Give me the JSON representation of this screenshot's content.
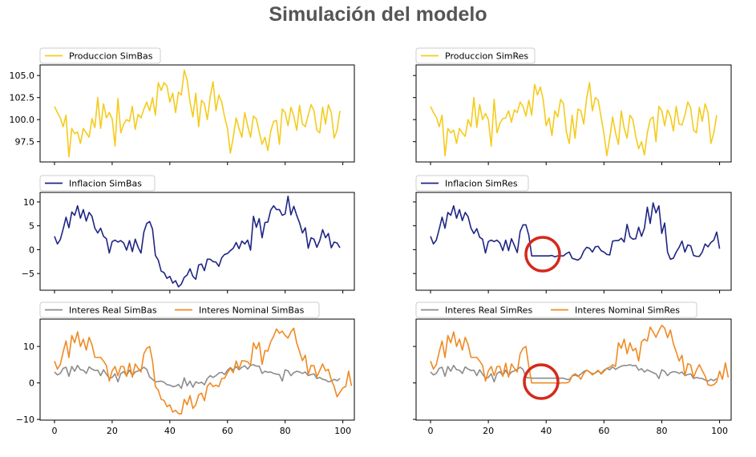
{
  "page_title": "Simulación del modelo",
  "colors": {
    "produccion": "#f5cb1d",
    "inflacion": "#1f2583",
    "interes_real": "#8c8c8c",
    "interes_nominal": "#ef8a22",
    "highlight": "#d42a1c"
  },
  "chart_data": [
    {
      "type": "line",
      "id": "prod-simbas",
      "xlim": [
        -5,
        104
      ],
      "ylim": [
        95.2,
        106.2
      ],
      "xticks": [
        0,
        20,
        40,
        60,
        80,
        100
      ],
      "show_xtick_labels": false,
      "yticks": [
        97.5,
        100.0,
        102.5,
        105.0
      ],
      "ytick_labels": [
        "97.5",
        "100.0",
        "102.5",
        "105.0"
      ],
      "legend_position": "top-left",
      "grid": false,
      "series": [
        {
          "name": "Produccion SimBas",
          "color_key": "produccion",
          "values": [
            101.5,
            100.8,
            100.2,
            99.2,
            100.5,
            95.8,
            99.0,
            98.4,
            98.6,
            97.3,
            99.0,
            98.5,
            98.0,
            100.1,
            99.1,
            102.5,
            99.0,
            101.8,
            100.2,
            100.8,
            100.1,
            97.0,
            102.4,
            98.5,
            99.5,
            100.0,
            99.8,
            101.5,
            98.9,
            100.6,
            100.2,
            101.2,
            102.0,
            101.0,
            102.5,
            100.5,
            104.2,
            103.3,
            104.2,
            103.8,
            102.0,
            103.0,
            100.8,
            103.1,
            102.8,
            105.6,
            104.5,
            102.0,
            100.3,
            103.0,
            99.2,
            102.2,
            101.8,
            100.0,
            102.6,
            104.3,
            101.0,
            102.8,
            102.0,
            100.3,
            99.0,
            96.2,
            98.0,
            100.2,
            99.0,
            98.0,
            100.8,
            99.3,
            98.0,
            100.4,
            100.1,
            98.6,
            97.2,
            98.0,
            96.5,
            98.7,
            99.8,
            99.9,
            97.2,
            101.2,
            100.8,
            99.3,
            101.4,
            100.4,
            98.8,
            101.6,
            99.5,
            99.2,
            100.5,
            101.7,
            101.0,
            98.8,
            98.5,
            101.4,
            99.5,
            101.7,
            100.8,
            97.9,
            98.8,
            101.0
          ]
        }
      ]
    },
    {
      "type": "line",
      "id": "prod-simres",
      "xlim": [
        -5,
        104
      ],
      "ylim": [
        95.2,
        106.2
      ],
      "xticks": [
        0,
        20,
        40,
        60,
        80,
        100
      ],
      "show_xtick_labels": false,
      "yticks": [
        97.5,
        100.0,
        102.5,
        105.0
      ],
      "ytick_labels": [
        "",
        "",
        "",
        ""
      ],
      "legend_position": "top-left",
      "grid": false,
      "series": [
        {
          "name": "Produccion SimRes",
          "color_key": "produccion",
          "values": [
            101.5,
            100.8,
            100.3,
            99.2,
            100.5,
            95.9,
            99.0,
            98.5,
            98.8,
            97.3,
            99.0,
            98.5,
            98.1,
            100.0,
            99.2,
            102.5,
            99.1,
            101.7,
            100.0,
            100.7,
            100.0,
            97.0,
            102.3,
            98.5,
            99.6,
            100.1,
            100.2,
            101.0,
            99.7,
            101.1,
            100.8,
            102.0,
            101.5,
            100.4,
            102.2,
            100.5,
            104.0,
            102.8,
            103.7,
            102.2,
            99.3,
            100.2,
            98.2,
            101.0,
            100.3,
            102.3,
            101.8,
            98.6,
            97.3,
            100.5,
            97.9,
            101.2,
            101.0,
            99.5,
            102.4,
            104.2,
            101.0,
            102.5,
            102.2,
            100.3,
            98.4,
            95.9,
            97.9,
            100.3,
            98.5,
            97.2,
            101.0,
            99.0,
            97.9,
            100.5,
            100.0,
            98.1,
            96.7,
            97.5,
            96.0,
            98.5,
            100.0,
            100.3,
            97.5,
            101.5,
            101.0,
            99.3,
            101.1,
            100.4,
            98.7,
            101.5,
            99.5,
            99.4,
            100.5,
            102.0,
            101.3,
            98.8,
            98.5,
            101.4,
            99.8,
            101.8,
            100.8,
            97.3,
            98.5,
            100.5
          ]
        }
      ]
    },
    {
      "type": "line",
      "id": "infl-simbas",
      "xlim": [
        -5,
        104
      ],
      "ylim": [
        -8.5,
        12.0
      ],
      "xticks": [
        0,
        20,
        40,
        60,
        80,
        100
      ],
      "show_xtick_labels": false,
      "yticks": [
        -5,
        0,
        5,
        10
      ],
      "ytick_labels": [
        "−5",
        "0",
        "5",
        "10"
      ],
      "legend_position": "top-left",
      "grid": false,
      "series": [
        {
          "name": "Inflacion SimBas",
          "color_key": "inflacion",
          "values": [
            2.8,
            1.2,
            2.1,
            4.3,
            6.8,
            4.6,
            7.9,
            7.2,
            9.2,
            6.6,
            8.4,
            6.0,
            7.8,
            7.0,
            4.5,
            3.5,
            4.5,
            2.8,
            2.3,
            -0.7,
            1.7,
            2.0,
            1.6,
            1.9,
            1.4,
            -0.1,
            1.9,
            -0.4,
            2.2,
            0.5,
            -0.7,
            3.7,
            5.5,
            5.9,
            4.3,
            -1.2,
            -2.2,
            -4.5,
            -4.8,
            -6.0,
            -5.6,
            -7.0,
            -6.5,
            -7.8,
            -7.2,
            -5.8,
            -5.3,
            -4.0,
            -5.6,
            -6.2,
            -3.2,
            -3.0,
            -4.4,
            -2.0,
            -2.0,
            -2.5,
            -2.6,
            -3.5,
            -1.7,
            -1.0,
            -0.8,
            -0.2,
            0.3,
            1.5,
            0.2,
            1.8,
            1.2,
            2.0,
            -0.1,
            7.0,
            4.7,
            6.5,
            2.5,
            5.7,
            5.8,
            8.3,
            9.2,
            8.4,
            8.4,
            7.2,
            7.5,
            11.2,
            7.3,
            9.1,
            7.2,
            5.6,
            3.5,
            4.6,
            0.3,
            2.5,
            2.2,
            0.5,
            1.9,
            4.2,
            2.5,
            3.4,
            0.4,
            1.6,
            1.4,
            0.4
          ]
        }
      ]
    },
    {
      "type": "line",
      "id": "infl-simres",
      "xlim": [
        -5,
        104
      ],
      "ylim": [
        -8.5,
        12.0
      ],
      "xticks": [
        0,
        20,
        40,
        60,
        80,
        100
      ],
      "show_xtick_labels": false,
      "yticks": [
        -5,
        0,
        5,
        10
      ],
      "ytick_labels": [
        "",
        "",
        "",
        ""
      ],
      "legend_position": "top-left",
      "grid": false,
      "series": [
        {
          "name": "Inflacion SimRes",
          "color_key": "inflacion",
          "values": [
            2.8,
            1.2,
            2.0,
            4.3,
            6.8,
            4.5,
            7.8,
            7.2,
            9.2,
            6.6,
            8.4,
            6.1,
            7.8,
            6.9,
            4.5,
            3.4,
            4.4,
            2.6,
            2.2,
            -0.7,
            1.7,
            2.0,
            1.7,
            2.0,
            1.4,
            -0.2,
            2.0,
            -0.2,
            2.3,
            0.9,
            -0.6,
            3.8,
            5.2,
            5.2,
            3.0,
            -1.3,
            -1.3,
            -1.3,
            -1.3,
            -1.3,
            -1.3,
            -1.3,
            -1.2,
            -1.5,
            -1.3,
            -1.3,
            -1.3,
            -0.8,
            -0.5,
            -1.8,
            -2.0,
            -2.2,
            -1.7,
            -0.3,
            0.5,
            0.3,
            -0.5,
            0.6,
            0.7,
            -0.2,
            -0.5,
            -1.0,
            -1.1,
            1.8,
            1.9,
            1.9,
            2.4,
            1.6,
            5.3,
            2.7,
            2.2,
            2.3,
            4.7,
            2.8,
            4.5,
            8.9,
            5.5,
            9.8,
            7.7,
            9.2,
            3.4,
            5.6,
            -0.5,
            -2.0,
            -1.8,
            -0.5,
            0.5,
            1.8,
            -0.5,
            1.0,
            0.8,
            -1.2,
            -1.4,
            -1.4,
            -0.5,
            1.2,
            0.6,
            1.5,
            2.0,
            3.7,
            0.2
          ]
        }
      ]
    },
    {
      "type": "line",
      "id": "interes-simbas",
      "xlim": [
        -5,
        104
      ],
      "ylim": [
        -10.2,
        17.5
      ],
      "xticks": [
        0,
        20,
        40,
        60,
        80,
        100
      ],
      "xtick_labels": [
        "0",
        "20",
        "40",
        "60",
        "80",
        "100"
      ],
      "show_xtick_labels": true,
      "yticks": [
        -10,
        0,
        10
      ],
      "ytick_labels": [
        "−10",
        "0",
        "10"
      ],
      "legend_position": "top-left",
      "grid": false,
      "series": [
        {
          "name": "Interes Real SimBas",
          "color_key": "interes_real",
          "values": [
            3.0,
            2.2,
            2.6,
            4.0,
            4.3,
            1.8,
            4.5,
            3.2,
            4.8,
            3.6,
            3.5,
            2.6,
            4.4,
            3.8,
            3.4,
            3.5,
            2.0,
            3.6,
            2.4,
            1.3,
            1.5,
            2.5,
            0.3,
            2.6,
            3.1,
            2.0,
            3.5,
            2.0,
            3.0,
            3.3,
            3.7,
            4.3,
            3.7,
            1.6,
            1.0,
            0.3,
            0.4,
            0.5,
            0.2,
            -0.5,
            -0.6,
            -1.0,
            -0.9,
            -0.4,
            -1.5,
            1.4,
            -0.8,
            0.5,
            -1.2,
            0.3,
            -0.1,
            0.2,
            -0.5,
            1.2,
            2.0,
            1.5,
            2.0,
            2.7,
            2.9,
            2.3,
            3.5,
            4.2,
            3.5,
            4.5,
            3.6,
            4.3,
            4.7,
            3.8,
            4.8,
            5.0,
            4.6,
            4.6,
            2.6,
            3.2,
            2.9,
            3.0,
            2.6,
            2.4,
            2.3,
            0.5,
            3.6,
            3.3,
            2.0,
            2.8,
            3.2,
            3.0,
            2.6,
            3.0,
            2.0,
            2.3,
            2.5,
            1.2,
            1.5,
            1.0,
            0.8,
            0.3,
            0.5,
            1.0,
            0.6,
            1.2
          ]
        },
        {
          "name": "Interes Nominal SimBas",
          "color_key": "interes_nominal",
          "values": [
            6.0,
            3.8,
            5.0,
            8.5,
            11.5,
            7.0,
            13.0,
            11.0,
            14.0,
            10.0,
            12.0,
            9.0,
            12.5,
            10.5,
            7.0,
            7.0,
            7.0,
            6.0,
            4.8,
            0.5,
            3.3,
            4.5,
            2.0,
            4.5,
            4.5,
            1.8,
            5.4,
            1.6,
            5.2,
            4.0,
            3.0,
            8.0,
            9.5,
            10.0,
            6.0,
            -1.0,
            -2.0,
            -4.5,
            -4.8,
            -6.5,
            -6.0,
            -8.0,
            -7.5,
            -8.4,
            -8.5,
            -4.5,
            -6.0,
            -3.5,
            -7.0,
            -6.0,
            -3.3,
            -2.8,
            -4.9,
            -0.9,
            0.0,
            -1.0,
            -0.6,
            -1.0,
            1.2,
            1.3,
            2.8,
            4.0,
            2.8,
            6.0,
            3.8,
            6.1,
            6.0,
            5.8,
            4.8,
            11.0,
            9.3,
            11.1,
            5.1,
            8.9,
            8.7,
            11.3,
            12.8,
            14.8,
            13.6,
            14.2,
            13.0,
            12.3,
            14.0,
            15.0,
            11.0,
            8.6,
            6.1,
            7.6,
            2.3,
            4.8,
            4.7,
            1.7,
            3.4,
            5.2,
            3.3,
            3.7,
            0.9,
            -1.0,
            -3.8,
            -2.6,
            -1.4,
            -1.0,
            3.2,
            -0.8
          ]
        }
      ]
    },
    {
      "type": "line",
      "id": "interes-simres",
      "xlim": [
        -5,
        104
      ],
      "ylim": [
        -10.2,
        17.5
      ],
      "xticks": [
        0,
        20,
        40,
        60,
        80,
        100
      ],
      "xtick_labels": [
        "0",
        "20",
        "40",
        "60",
        "80",
        "100"
      ],
      "show_xtick_labels": true,
      "yticks": [
        -10,
        0,
        10
      ],
      "ytick_labels": [
        "",
        "",
        ""
      ],
      "legend_position": "top-left",
      "grid": false,
      "series": [
        {
          "name": "Interes Real SimRes",
          "color_key": "interes_real",
          "values": [
            3.0,
            2.2,
            2.6,
            4.0,
            4.3,
            1.8,
            4.5,
            3.2,
            4.8,
            3.6,
            3.5,
            2.6,
            4.4,
            3.8,
            3.4,
            3.5,
            2.0,
            3.6,
            2.4,
            1.3,
            1.5,
            2.5,
            0.3,
            2.6,
            3.1,
            2.0,
            3.5,
            2.0,
            3.0,
            3.3,
            3.7,
            4.3,
            3.7,
            1.5,
            1.4,
            1.3,
            1.3,
            1.3,
            1.3,
            1.3,
            1.3,
            1.3,
            1.3,
            1.3,
            1.3,
            1.3,
            1.3,
            1.0,
            0.9,
            1.9,
            2.2,
            1.8,
            2.4,
            3.1,
            3.5,
            3.0,
            2.5,
            2.7,
            3.3,
            2.6,
            3.5,
            4.0,
            3.6,
            4.4,
            3.7,
            4.2,
            4.6,
            4.8,
            4.8,
            5.0,
            4.7,
            4.8,
            3.5,
            3.9,
            3.0,
            3.6,
            3.2,
            2.8,
            2.5,
            1.2,
            3.6,
            3.2,
            2.0,
            2.8,
            3.1,
            3.0,
            2.6,
            3.0,
            2.0,
            2.3,
            2.5,
            1.2,
            1.5,
            1.3,
            1.2,
            0.8,
            0.5,
            1.0,
            0.6,
            1.2
          ]
        },
        {
          "name": "Interes Nominal SimRes",
          "color_key": "interes_nominal",
          "values": [
            6.0,
            3.8,
            5.0,
            8.5,
            11.5,
            7.0,
            13.0,
            11.0,
            14.0,
            10.0,
            12.0,
            9.0,
            12.5,
            10.5,
            7.0,
            7.0,
            7.0,
            6.0,
            4.8,
            0.5,
            3.3,
            4.5,
            2.0,
            4.5,
            4.5,
            1.8,
            5.4,
            1.6,
            5.2,
            4.0,
            3.0,
            8.0,
            9.5,
            10.0,
            4.5,
            0.0,
            0.0,
            0.0,
            0.0,
            0.0,
            0.0,
            0.0,
            0.0,
            0.0,
            -0.2,
            0.0,
            0.0,
            0.0,
            0.3,
            2.0,
            2.5,
            2.0,
            1.0,
            2.6,
            3.5,
            3.0,
            2.2,
            2.8,
            3.5,
            2.4,
            3.2,
            4.0,
            4.3,
            5.0,
            4.5,
            11.0,
            9.5,
            12.0,
            8.0,
            11.0,
            8.8,
            9.5,
            6.0,
            11.3,
            12.0,
            11.5,
            15.3,
            14.0,
            12.5,
            14.3,
            15.8,
            15.0,
            12.4,
            14.5,
            10.8,
            8.5,
            6.0,
            7.6,
            2.0,
            5.3,
            4.9,
            1.5,
            3.5,
            5.0,
            3.4,
            1.9,
            -0.5,
            -0.7,
            -0.5,
            0.3,
            3.2,
            1.0,
            5.5,
            1.5
          ]
        }
      ]
    }
  ]
}
